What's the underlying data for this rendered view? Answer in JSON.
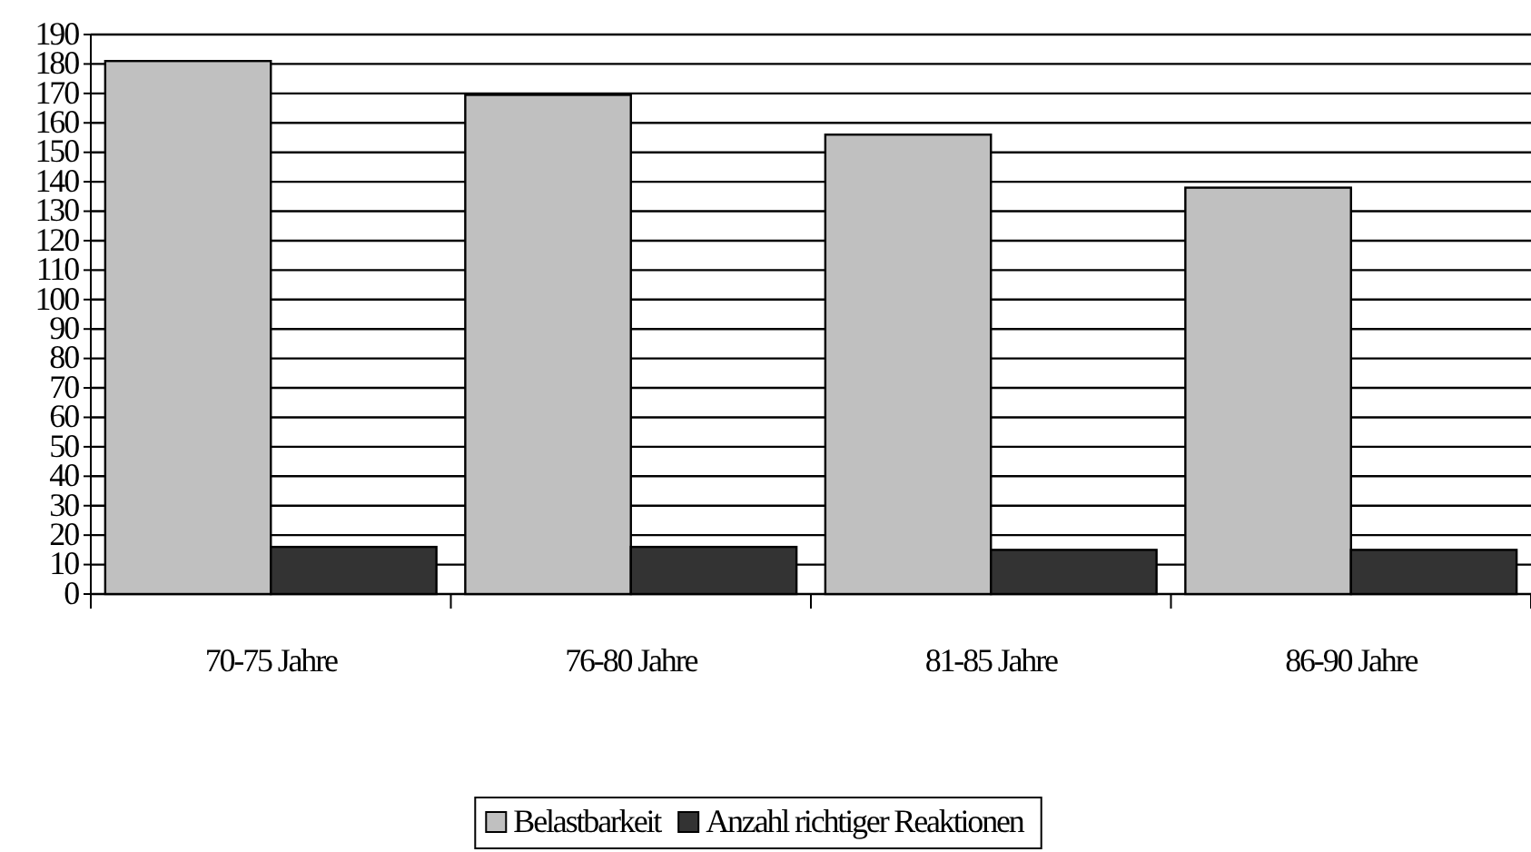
{
  "chart_data": {
    "type": "bar",
    "categories": [
      "70-75 Jahre",
      "76-80 Jahre",
      "81-85 Jahre",
      "86-90 Jahre"
    ],
    "series": [
      {
        "name": "Belastbarkeit",
        "color": "#c0c0c0",
        "values": [
          181,
          169.5,
          156,
          138
        ]
      },
      {
        "name": "Anzahl richtiger Reaktionen",
        "color": "#333333",
        "values": [
          16,
          16,
          15,
          15
        ]
      }
    ],
    "ylim": [
      0,
      190
    ],
    "yticks": [
      0,
      10,
      20,
      30,
      40,
      50,
      60,
      70,
      80,
      90,
      100,
      110,
      120,
      130,
      140,
      150,
      160,
      170,
      180,
      190
    ],
    "grid": "y",
    "legend": "bottom"
  }
}
